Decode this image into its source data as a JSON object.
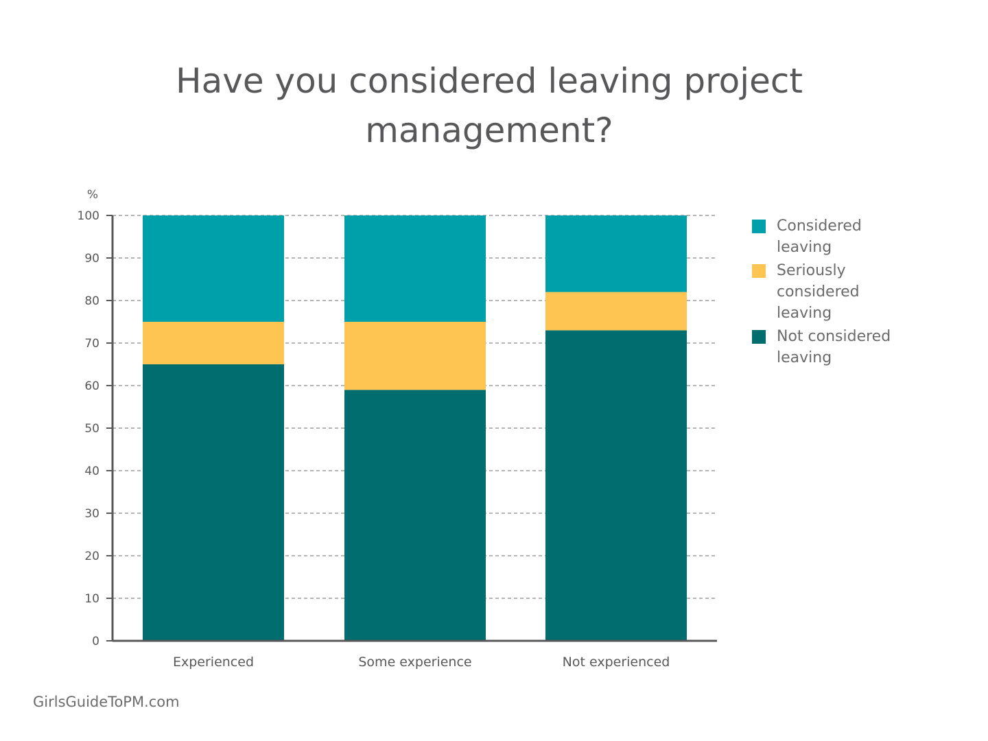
{
  "title": "Have you considered leaving project management?",
  "credit": "GirlsGuideToPM.com",
  "colors": {
    "considered": "#00a0aa",
    "seriously": "#fec552",
    "not_considered": "#026d6e",
    "axis": "#58585a",
    "grid": "#6b6b6b",
    "text": "#58585a"
  },
  "chart_data": {
    "type": "bar",
    "stacked": true,
    "title": "Have you considered leaving project management?",
    "ylabel": "%",
    "xlabel": "",
    "ylim": [
      0,
      100
    ],
    "yticks": [
      0,
      10,
      20,
      30,
      40,
      50,
      60,
      70,
      80,
      90,
      100
    ],
    "grid": true,
    "legend_position": "right",
    "categories": [
      "Experienced",
      "Some experience",
      "Not experienced"
    ],
    "series": [
      {
        "name": "Not considered leaving",
        "color": "#026d6e",
        "values": [
          65,
          59,
          73
        ]
      },
      {
        "name": "Seriously considered leaving",
        "color": "#fec552",
        "values": [
          10,
          16,
          9
        ]
      },
      {
        "name": "Considered leaving",
        "color": "#00a0aa",
        "values": [
          25,
          25,
          18
        ]
      }
    ]
  },
  "legend": [
    {
      "label": "Considered leaving",
      "color": "#00a0aa"
    },
    {
      "label": "Seriously considered leaving",
      "color": "#fec552"
    },
    {
      "label": "Not considered leaving",
      "color": "#026d6e"
    }
  ]
}
